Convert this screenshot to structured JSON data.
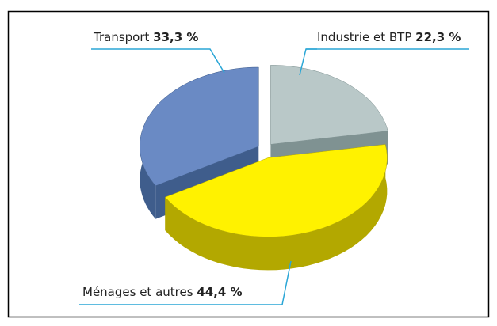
{
  "chart_data": {
    "type": "pie",
    "three_d": true,
    "categories": [
      "Industrie et BTP",
      "Ménages et autres",
      "Transport"
    ],
    "values": [
      22.3,
      44.4,
      33.3
    ],
    "value_labels": [
      "22,3 %",
      "44,4 %",
      "33,3 %"
    ],
    "colors": [
      "#b9c8c8",
      "#fff200",
      "#6a8ac4"
    ],
    "side_colors": [
      "#7f9292",
      "#b3a800",
      "#3f5d8c"
    ]
  }
}
